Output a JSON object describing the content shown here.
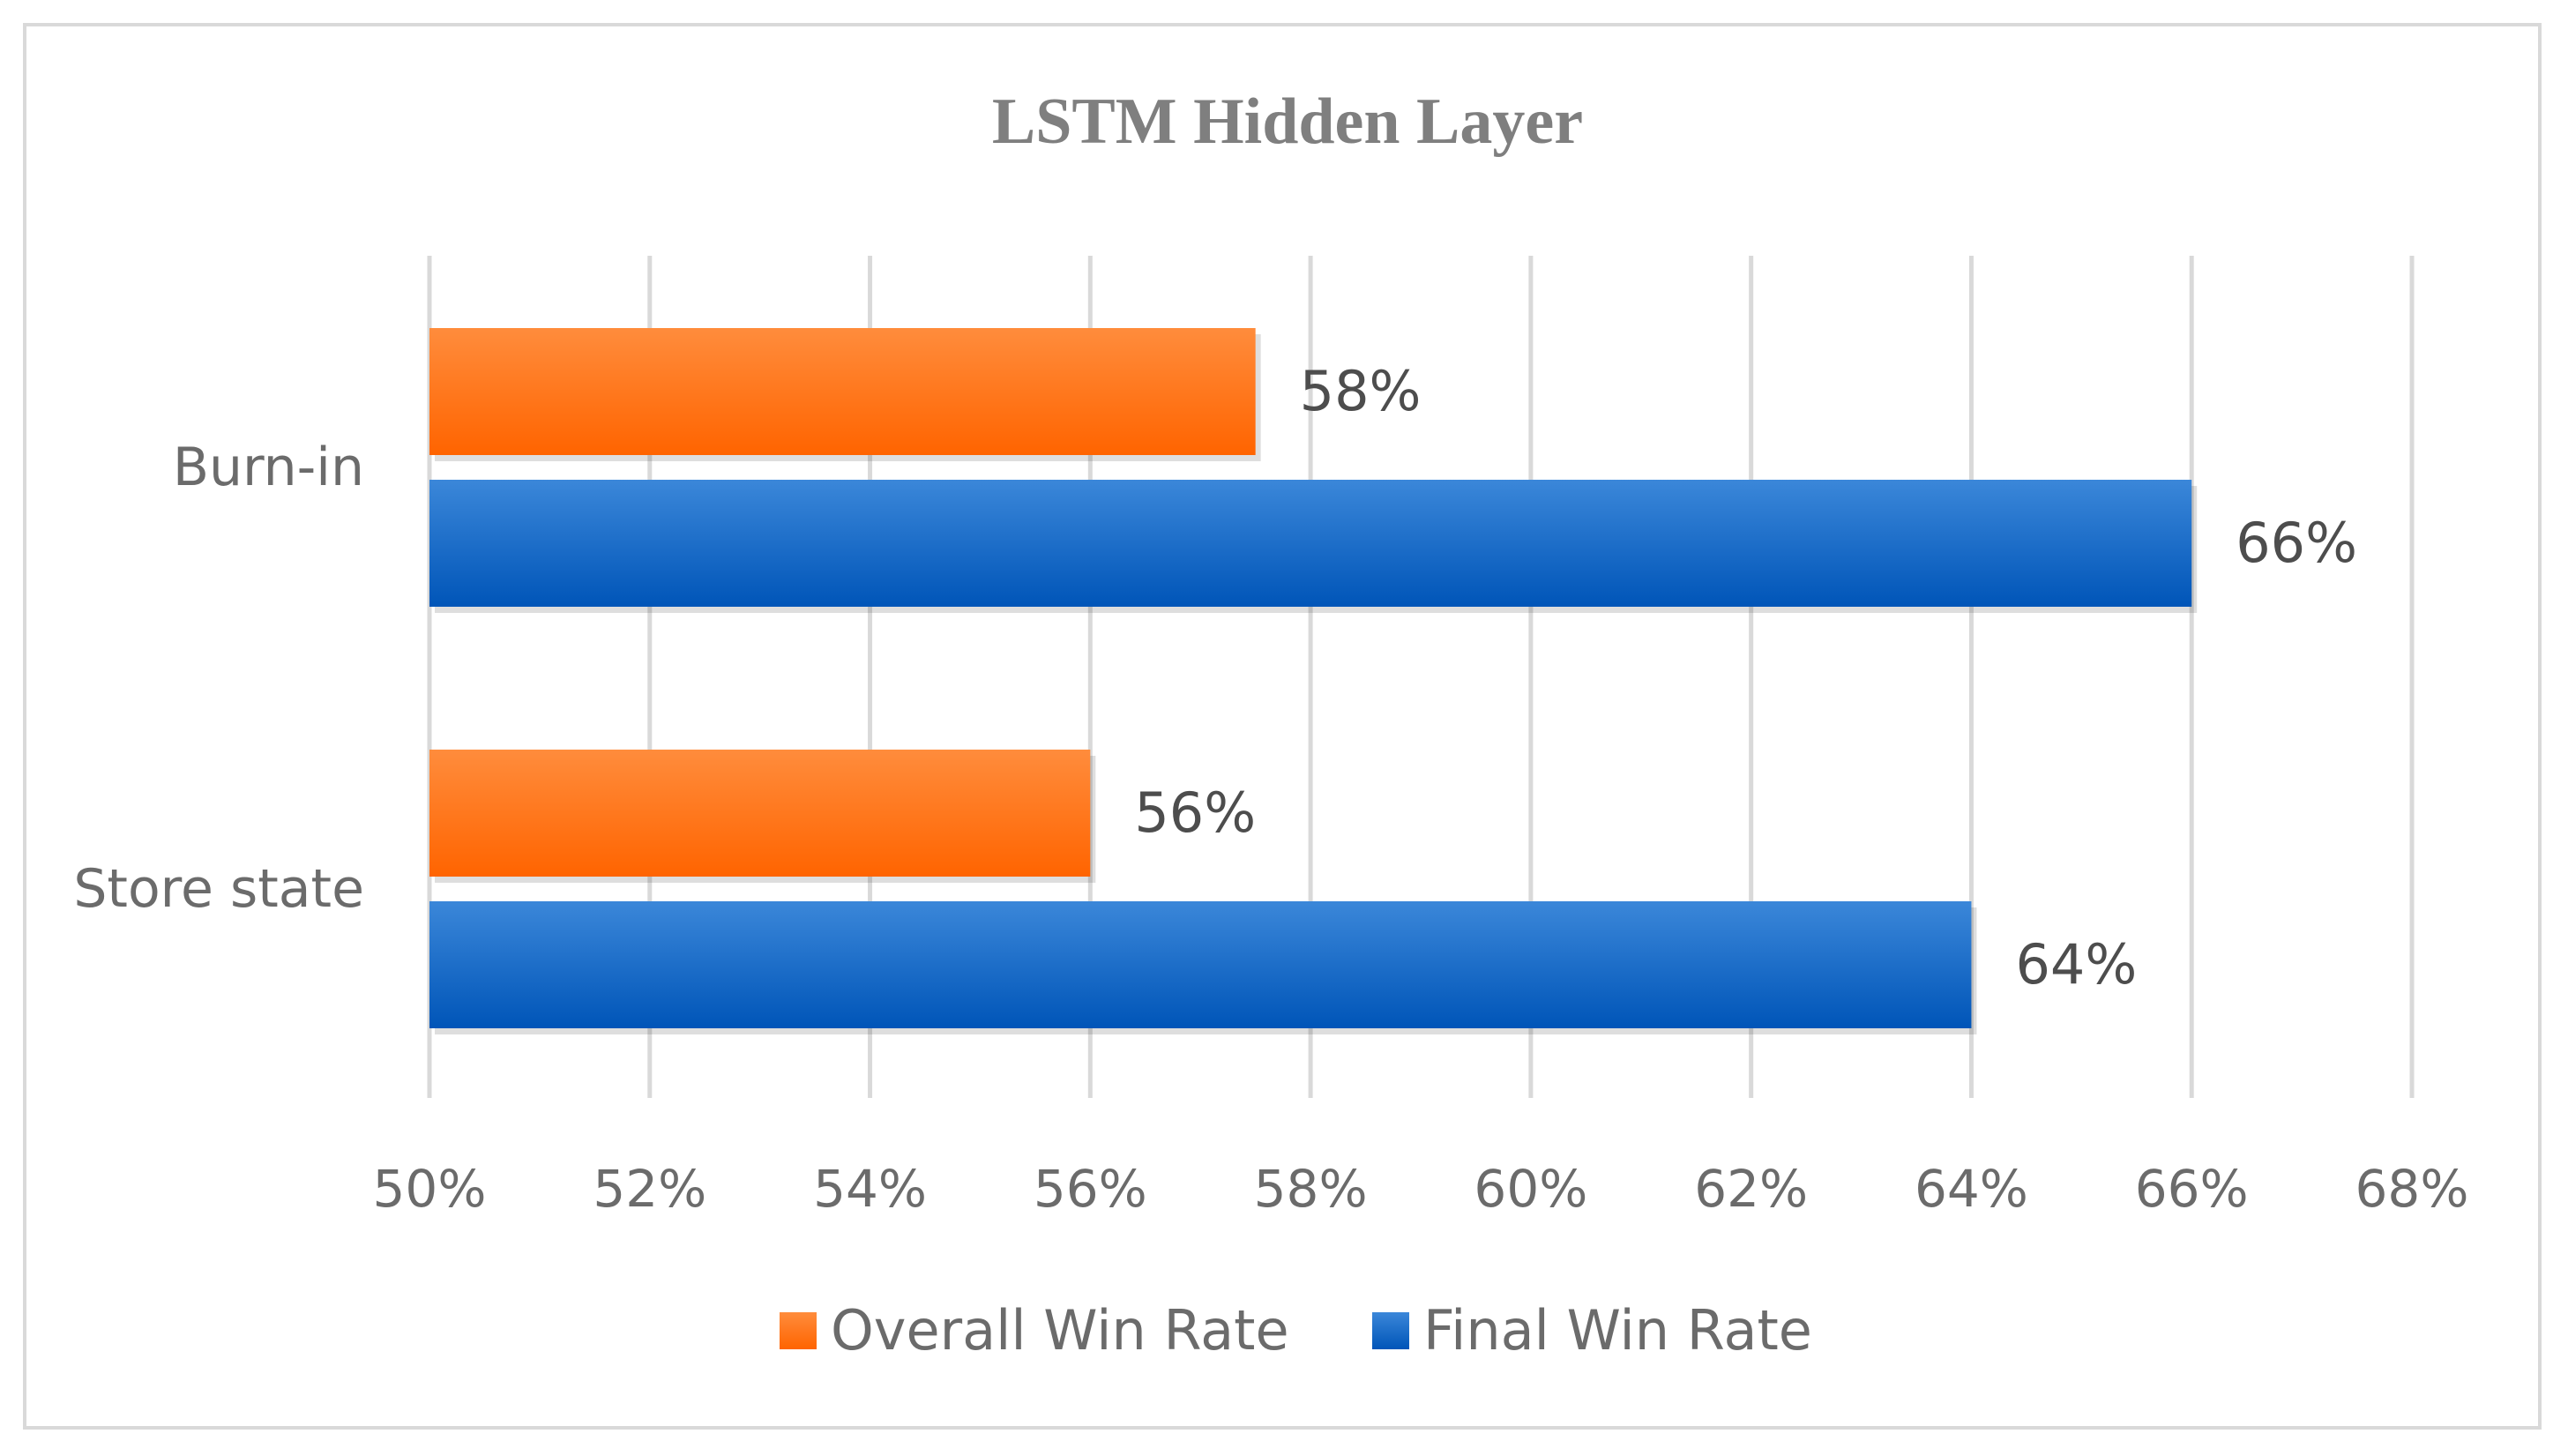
{
  "chart_data": {
    "type": "bar",
    "orientation": "horizontal",
    "title": "LSTM Hidden Layer",
    "categories": [
      "Burn-in",
      "Store state"
    ],
    "series": [
      {
        "name": "Overall Win Rate",
        "values": [
          57.5,
          56
        ],
        "labels": [
          "58%",
          "56%"
        ],
        "color": "#ff6a00"
      },
      {
        "name": "Final Win Rate",
        "values": [
          66,
          64
        ],
        "labels": [
          "66%",
          "64%"
        ],
        "color": "#0a63c8"
      }
    ],
    "xlim": [
      50,
      68
    ],
    "xticks": [
      "50%",
      "52%",
      "54%",
      "56%",
      "58%",
      "60%",
      "62%",
      "64%",
      "66%",
      "68%"
    ],
    "xlabel": "",
    "ylabel": "",
    "grid": true,
    "legend_position": "bottom"
  }
}
